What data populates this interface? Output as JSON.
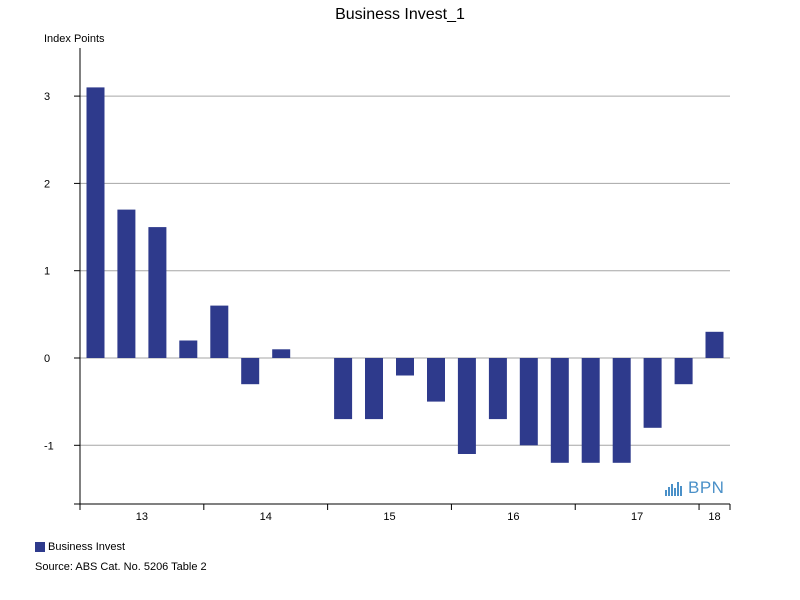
{
  "chart_data": {
    "type": "bar",
    "title": "Business Invest_1",
    "ylabel": "Index Points",
    "xlabel": "",
    "ylim": [
      -1.6,
      3.5
    ],
    "yticks": [
      -1,
      0,
      1,
      2,
      3
    ],
    "grid": true,
    "legend_position": "bottom-left",
    "year_labels": [
      "13",
      "14",
      "15",
      "16",
      "17",
      "18"
    ],
    "series": [
      {
        "name": "Business Invest",
        "color": "#2e3a8c",
        "values": [
          3.1,
          1.7,
          1.5,
          0.2,
          0.6,
          -0.3,
          0.1,
          null,
          -0.7,
          -0.7,
          -0.2,
          -0.5,
          -1.1,
          -0.7,
          -1.0,
          -1.2,
          -1.2,
          -1.2,
          -0.8,
          -0.3,
          0.3
        ]
      }
    ]
  },
  "legend": {
    "label": "Business Invest",
    "color": "#2e3a8c"
  },
  "source": "Source: ABS Cat. No. 5206 Table 2",
  "logo": {
    "text": "BPN",
    "color": "#4a90c8"
  }
}
